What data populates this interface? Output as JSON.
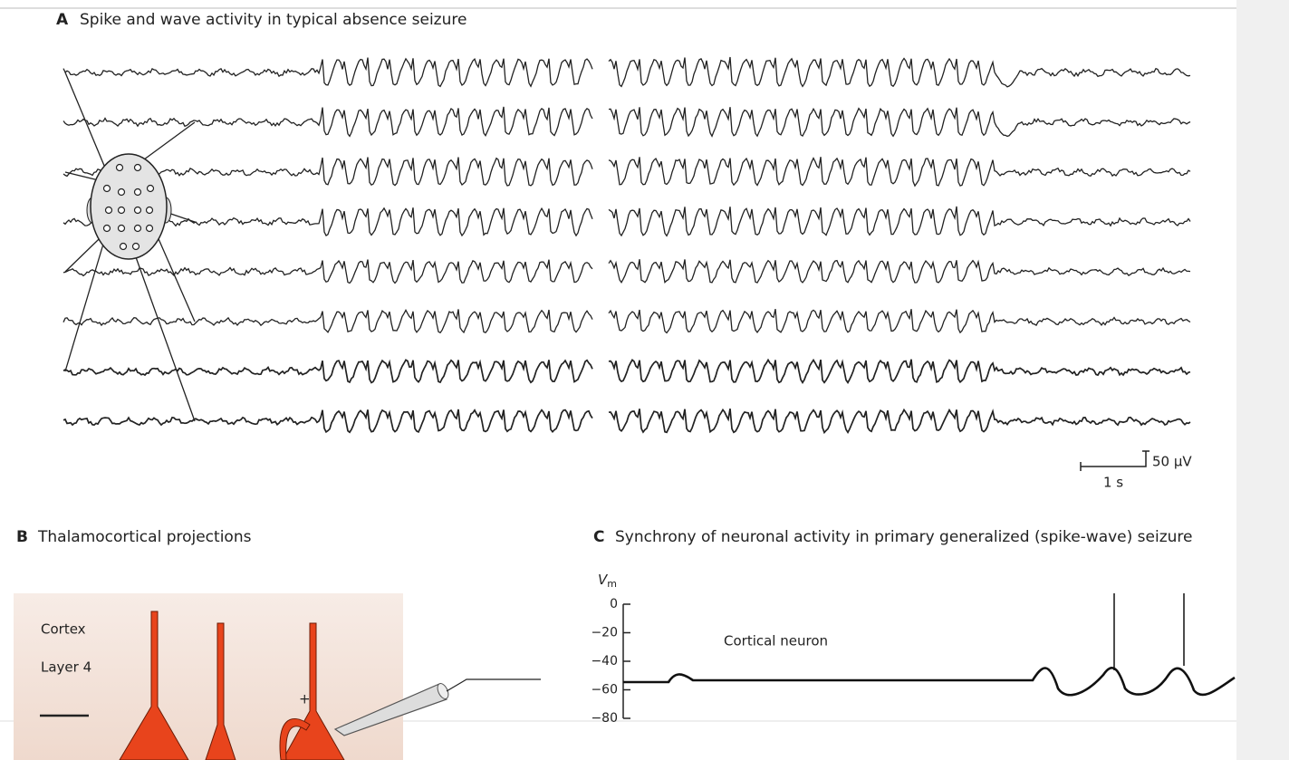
{
  "panel_a": {
    "letter": "A",
    "title": "Spike and wave activity in typical absence seizure",
    "scale_voltage": "50 μV",
    "scale_time": "1 s"
  },
  "panel_b": {
    "letter": "B",
    "title": "Thalamocortical projections",
    "region": "Cortex",
    "layer": "Layer 4",
    "sign": "+"
  },
  "panel_c": {
    "letter": "C",
    "title": "Synchrony of neuronal activity in primary generalized (spike-wave) seizure",
    "axis_label": "V",
    "axis_label_sub": "m",
    "yticks": [
      0,
      {
        "value": -20,
        "label": "−20"
      },
      {
        "value": -40,
        "label": "−40"
      },
      {
        "value": -60,
        "label": "−60"
      },
      {
        "value": -80,
        "label": "−80"
      }
    ],
    "ylim": [
      -80,
      0
    ],
    "trace_label": "Cortical neuron"
  }
}
